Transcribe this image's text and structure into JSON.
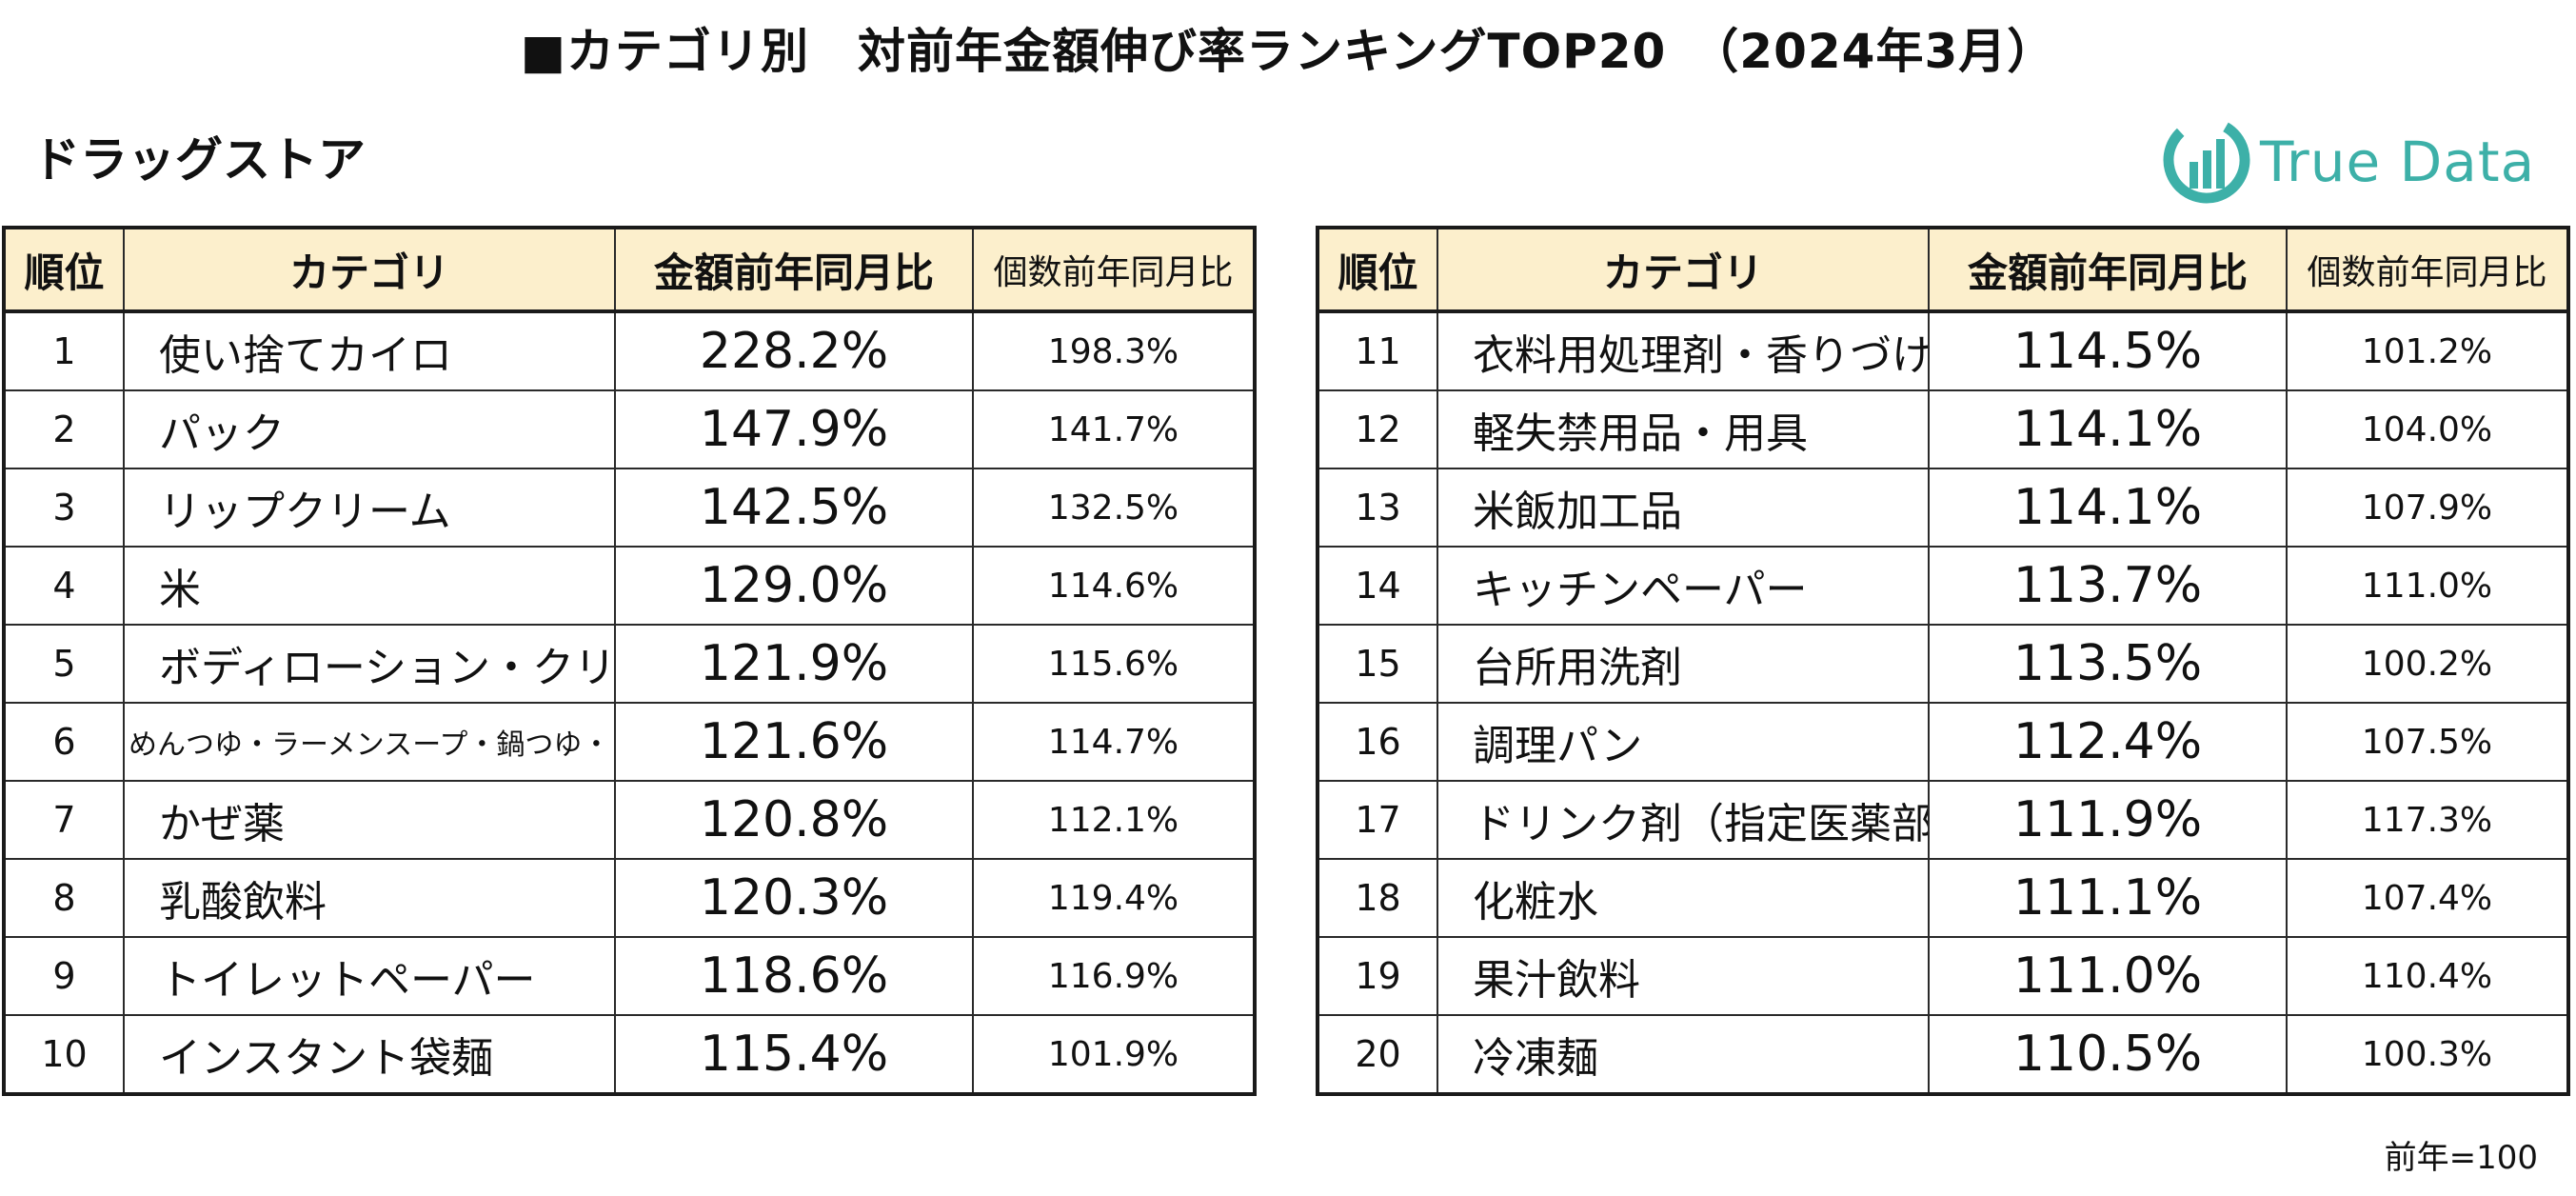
{
  "title": "■カテゴリ別　対前年金額伸び率ランキングTOP20　（2024年3月）",
  "subtitle": "ドラッグストア",
  "logo": {
    "text": "True Data",
    "color": "#3db0a8",
    "icon": "bar-chart-circle-icon"
  },
  "table": {
    "headers": {
      "rank": "順位",
      "category": "カテゴリ",
      "amount_yoy": "金額前年同月比",
      "quantity_yoy": "個数前年同月比"
    },
    "header_bg": "#fcefcc",
    "left_rows": [
      {
        "rank": "1",
        "category": "使い捨てカイロ",
        "amount_yoy": "228.2%",
        "quantity_yoy": "198.3%"
      },
      {
        "rank": "2",
        "category": "パック",
        "amount_yoy": "147.9%",
        "quantity_yoy": "141.7%"
      },
      {
        "rank": "3",
        "category": "リップクリーム",
        "amount_yoy": "142.5%",
        "quantity_yoy": "132.5%"
      },
      {
        "rank": "4",
        "category": "米",
        "amount_yoy": "129.0%",
        "quantity_yoy": "114.6%"
      },
      {
        "rank": "5",
        "category": "ボディローション・クリーム",
        "amount_yoy": "121.9%",
        "quantity_yoy": "115.6%"
      },
      {
        "rank": "6",
        "category": "めんつゆ・ラーメンスープ・鍋つゆ・白だし",
        "amount_yoy": "121.6%",
        "quantity_yoy": "114.7%"
      },
      {
        "rank": "7",
        "category": "かぜ薬",
        "amount_yoy": "120.8%",
        "quantity_yoy": "112.1%"
      },
      {
        "rank": "8",
        "category": "乳酸飲料",
        "amount_yoy": "120.3%",
        "quantity_yoy": "119.4%"
      },
      {
        "rank": "9",
        "category": "トイレットペーパー",
        "amount_yoy": "118.6%",
        "quantity_yoy": "116.9%"
      },
      {
        "rank": "10",
        "category": "インスタント袋麺",
        "amount_yoy": "115.4%",
        "quantity_yoy": "101.9%"
      }
    ],
    "right_rows": [
      {
        "rank": "11",
        "category": "衣料用処理剤・香りづけ",
        "amount_yoy": "114.5%",
        "quantity_yoy": "101.2%"
      },
      {
        "rank": "12",
        "category": "軽失禁用品・用具",
        "amount_yoy": "114.1%",
        "quantity_yoy": "104.0%"
      },
      {
        "rank": "13",
        "category": "米飯加工品",
        "amount_yoy": "114.1%",
        "quantity_yoy": "107.9%"
      },
      {
        "rank": "14",
        "category": "キッチンペーパー",
        "amount_yoy": "113.7%",
        "quantity_yoy": "111.0%"
      },
      {
        "rank": "15",
        "category": "台所用洗剤",
        "amount_yoy": "113.5%",
        "quantity_yoy": "100.2%"
      },
      {
        "rank": "16",
        "category": "調理パン",
        "amount_yoy": "112.4%",
        "quantity_yoy": "107.5%"
      },
      {
        "rank": "17",
        "category": "ドリンク剤（指定医薬部外品）",
        "amount_yoy": "111.9%",
        "quantity_yoy": "117.3%"
      },
      {
        "rank": "18",
        "category": "化粧水",
        "amount_yoy": "111.1%",
        "quantity_yoy": "107.4%"
      },
      {
        "rank": "19",
        "category": "果汁飲料",
        "amount_yoy": "111.0%",
        "quantity_yoy": "110.4%"
      },
      {
        "rank": "20",
        "category": "冷凍麺",
        "amount_yoy": "110.5%",
        "quantity_yoy": "100.3%"
      }
    ]
  },
  "footnote": "前年=100"
}
